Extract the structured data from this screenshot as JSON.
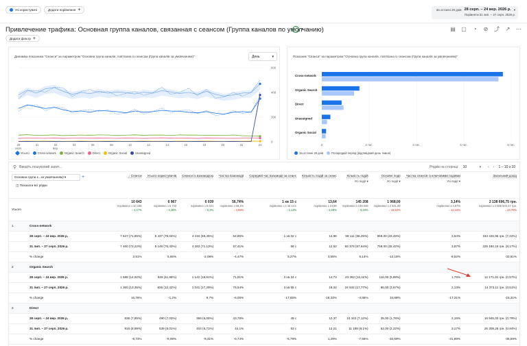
{
  "topbar": {
    "all_users": "Усі користувачі",
    "add_comparison": "Додати порівняння",
    "date_line1_prefix": "За останні 28 днів",
    "date_line1_range": "28 серп. – 24 вер. 2026 р.",
    "date_line2": "Порівняти:31 лип. – 27 серп. 2026 р."
  },
  "page": {
    "title": "Привлечение трафика: Основная группа каналов, связанная с сеансом (Группа каналов по умолчанию)",
    "add_filter": "Додати фільтр"
  },
  "left_chart": {
    "title": "Динаміка показника \"Сеанси\" за параметром \"Основна група каналів, пов'язана із сеансом (Група каналів за умовчанням)\"",
    "period_select": "День",
    "y_ticks": [
      "600",
      "400",
      "200",
      "0"
    ],
    "x_ticks": [
      {
        "d": "29",
        "m": "серп."
      },
      {
        "d": "31",
        "m": ""
      },
      {
        "d": "02",
        "m": "вер."
      },
      {
        "d": "04",
        "m": ""
      },
      {
        "d": "06",
        "m": ""
      },
      {
        "d": "08",
        "m": ""
      },
      {
        "d": "10",
        "m": ""
      },
      {
        "d": "12",
        "m": ""
      },
      {
        "d": "14",
        "m": ""
      },
      {
        "d": "16",
        "m": ""
      },
      {
        "d": "18",
        "m": ""
      },
      {
        "d": "20",
        "m": ""
      },
      {
        "d": "22",
        "m": ""
      },
      {
        "d": "24",
        "m": ""
      }
    ],
    "legend": [
      {
        "name": "Усього",
        "color": "#1a73e8"
      },
      {
        "name": "Cross-network",
        "color": "#1a73e8"
      },
      {
        "name": "Organic Search",
        "color": "#7cb342"
      },
      {
        "name": "Direct",
        "color": "#f06292"
      },
      {
        "name": "Organic Social",
        "color": "#fbbc04"
      },
      {
        "name": "Unassigned",
        "color": "#3949ab"
      }
    ]
  },
  "right_chart": {
    "title": "Показник \"Сеанси\" за параметром \"Основна група каналів, пов'язана із сеансом (Група каналів за умовчанням)\"",
    "x_ticks": [
      "0",
      "2 тис.",
      "4 тис.",
      "6 тис.",
      "8 тис."
    ],
    "legend": [
      {
        "name": "За останні 28 днів",
        "color": "#1a73e8"
      },
      {
        "name": "Попередній період (відповідний день тижня)",
        "color": "#a8c7fa"
      }
    ]
  },
  "chart_data": {
    "type": "bar",
    "title": "",
    "categories": [
      "Cross-network",
      "Organic Search",
      "Direct",
      "Unassigned",
      "Organic Social"
    ],
    "series": [
      {
        "name": "За останні 28 днів",
        "values": [
          7647,
          1588,
          836,
          360,
          180
        ]
      },
      {
        "name": "Попередній період (відповідний день тижня)",
        "values": [
          7460,
          1360,
          916,
          220,
          160
        ]
      }
    ],
    "xlim": [
      0,
      8000
    ],
    "orientation": "horizontal"
  },
  "line_chart_data": {
    "type": "line",
    "x": [
      "29",
      "30",
      "31",
      "01",
      "02",
      "03",
      "04",
      "05",
      "06",
      "07",
      "08",
      "09",
      "10",
      "11",
      "12",
      "13",
      "14",
      "15",
      "16",
      "17",
      "18",
      "19",
      "20",
      "21",
      "22",
      "23",
      "24",
      "25"
    ],
    "series": [
      {
        "name": "Усього",
        "color": "#1a73e8",
        "values": [
          380,
          420,
          395,
          430,
          440,
          410,
          385,
          400,
          390,
          410,
          395,
          405,
          398,
          388,
          402,
          395,
          415,
          405,
          392,
          400,
          385,
          410,
          385,
          370,
          380,
          395,
          400,
          470
        ]
      },
      {
        "name": "Cross-network",
        "color": "#1a73e8",
        "values": [
          270,
          300,
          285,
          270,
          280,
          260,
          245,
          250,
          240,
          255,
          250,
          245,
          235,
          250,
          240,
          245,
          255,
          250,
          248,
          240,
          235,
          245,
          232,
          225,
          240,
          245,
          240,
          350
        ]
      },
      {
        "name": "Organic Search",
        "color": "#7cb342",
        "values": [
          55,
          58,
          52,
          54,
          56,
          50,
          53,
          55,
          52,
          57,
          55,
          52,
          54,
          56,
          53,
          55,
          54,
          52,
          56,
          54,
          55,
          53,
          54,
          52,
          55,
          50,
          48,
          45
        ]
      },
      {
        "name": "Direct",
        "color": "#f06292",
        "values": [
          28,
          32,
          30,
          29,
          31,
          28,
          30,
          32,
          29,
          31,
          30,
          29,
          31,
          30,
          28,
          30,
          32,
          31,
          29,
          30,
          28,
          31,
          30,
          29,
          28,
          30,
          32,
          30
        ]
      },
      {
        "name": "Organic Social",
        "color": "#fbbc04",
        "values": [
          5,
          6,
          5,
          6,
          5,
          4,
          5,
          6,
          5,
          5,
          6,
          5,
          4,
          5,
          6,
          5,
          5,
          4,
          6,
          5,
          5,
          6,
          5,
          4,
          5,
          5,
          6,
          5
        ]
      },
      {
        "name": "Unassigned",
        "color": "#3949ab",
        "values": [
          2,
          3,
          2,
          2,
          3,
          2,
          2,
          3,
          2,
          2,
          3,
          2,
          2,
          2,
          3,
          2,
          2,
          3,
          2,
          2,
          3,
          2,
          2,
          2,
          3,
          2,
          2,
          380
        ]
      }
    ],
    "ylim": [
      0,
      600
    ]
  },
  "table": {
    "search_placeholder": "Введіть пошуковий запит...",
    "rows_per_page_label": "Рядків на сторінці:",
    "rows_per_page": "10",
    "pagination": "1 – 10 з 10",
    "dimension_select": "Основна група к...за умовчанням)",
    "show_all_rows": "Показати всі рядки",
    "columns": [
      {
        "label": "Сеанси",
        "sort": "↓"
      },
      {
        "label": "Усього користувачів"
      },
      {
        "label": "Сеанси із взаємодією"
      },
      {
        "label": "Частка взаємодії"
      },
      {
        "label": "Середній час взаємодії за сеанс"
      },
      {
        "label": "Кількість подій за сеанс"
      },
      {
        "label": "Кількість подій",
        "sub": "Усі події"
      },
      {
        "label": "Основні події",
        "sub": "Усі події"
      },
      {
        "label": "Частка сеансів із ключовими подіями",
        "sub": "Усі події"
      },
      {
        "label": "Загальний дохід"
      }
    ],
    "total_label": "Усього",
    "totals": [
      {
        "v": "10 643",
        "cmp": "порівняно з 10 188",
        "d": "↑ 4,47%",
        "t": "up"
      },
      {
        "v": "6 967",
        "cmp": "порівняно з 6 733",
        "d": "↑ 3,48%",
        "t": "up"
      },
      {
        "v": "6 039",
        "cmp": "порівняно з 6 021",
        "d": "↑ 0,3%",
        "t": "up"
      },
      {
        "v": "56,74%",
        "cmp": "порівняно з 59,1%",
        "d": "↓ 3,99%",
        "t": "down"
      },
      {
        "v": "1 хв 15 с",
        "cmp": "порівняно з 1 хв 14 с",
        "d": "↑ 1,13%",
        "t": "up"
      },
      {
        "v": "13,64",
        "cmp": "порівняно з 13,56",
        "d": "↑ 0,69%",
        "t": "up"
      },
      {
        "v": "145 208",
        "cmp": "порівняно з 138 049",
        "d": "↑ 5,19%",
        "t": "up"
      },
      {
        "v": "1 968,00",
        "cmp": "порівняно з 2 341,00",
        "d": "↓ 15,93%",
        "t": "down"
      },
      {
        "v": "3,14%",
        "cmp": "порівняно з 3,57%",
        "d": "↓ 12,16%",
        "t": "down"
      },
      {
        "v": "2 138 696,75 грн.",
        "cmp": "порівняно з 2 806 503,27 грн.",
        "d": "↓ 23,79%",
        "t": "down"
      }
    ],
    "groups": [
      {
        "idx": "1",
        "name": "Cross-network",
        "rows": [
          {
            "label": "28 серп. – 24 вер. 2026 р.",
            "cells": [
              "7 647 (71,85%)",
              "5 437 (78,04%)",
              "4 194 (69,45%)",
              "54,85%",
              "1 хв 02 с",
              "12,96",
              "99 111 (68,25%)",
              "659,00 (33,49%)",
              "3,54%",
              "154 426,96 грн. (7,22%)"
            ]
          },
          {
            "label": "31 лип. – 27 серп. 2026 р.",
            "cells": [
              "7 460 (73,22%)",
              "5 146 (76,43%)",
              "4 283 (71,13%)",
              "57,41%",
              "58 с",
              "12,52",
              "93 376 (67,64%)",
              "759,00 (32,42%)",
              "3,87%",
              "229 160,15 грн. (8,17%)"
            ]
          },
          {
            "label": "% change",
            "cells": [
              "2,51%",
              "5,65%",
              "-2,08%",
              "-4,47%",
              "5,27%",
              "3,55%",
              "6,14%",
              "-13,18%",
              "-8,52%",
              "-32,61%"
            ]
          }
        ]
      },
      {
        "idx": "2",
        "name": "Organic Search",
        "rows": [
          {
            "label": "28 серп. – 24 вер. 2026 р.",
            "cells": [
              "1 588 (14,92%)",
              "826 (11,86%)",
              "1 142 (18,91%)",
              "71,91%",
              "2 хв 24 с",
              "14,73",
              "23 392 (16,11%)",
              "116,00 (5,89%)",
              "1,76%",
              "12 171,91 грн. (0,57%)"
            ]
          },
          {
            "label": "31 лип. – 27 серп. 2026 р.",
            "cells": [
              "1 360 (13,35%)",
              "836 (12,42%)",
              "1 041 (17,29%)",
              "76,54%",
              "2 хв 55 с",
              "18,04",
              "24 534 (17,77%)",
              "86,00 (3,67%)",
              "2,13%",
              "14 373,11 грн. (0,51%)"
            ]
          },
          {
            "label": "% change",
            "cells": [
              "16,76%",
              "-1,2%",
              "9,7%",
              "-6,05%",
              "-17,65%",
              "-18,34%",
              "-4,65%",
              "34,88%",
              "-17,31%",
              "-15,31%"
            ]
          }
        ]
      },
      {
        "idx": "3",
        "name": "Direct",
        "rows": [
          {
            "label": "28 серп. – 24 вер. 2026 р.",
            "cells": [
              "836 (7,85%)",
              "490 (7,03%)",
              "366 (6,06%)",
              "43,78%",
              "49 с",
              "12,37",
              "10 343 (7,12%)",
              "35,00 (1,78%)",
              "2,15%",
              "16 945,02 грн. (0,79%)"
            ]
          },
          {
            "label": "31 лип. – 27 серп. 2026 р.",
            "cells": [
              "916 (8,99%)",
              "539 (8,01%)",
              "404 (6,71%)",
              "44,1%",
              "53 с",
              "12,21",
              "11 188 (8,1%)",
              "52,00 (2,22%)",
              "3,17%",
              "26 309,26 грн. (0,94%)"
            ]
          },
          {
            "label": "% change",
            "cells": [
              "-8,73%",
              "-9,09%",
              "-9,41%",
              "-0,74%",
              "-6,79%",
              "1,29%",
              "-7,55%",
              "-32,69%",
              "-31,99%",
              "-35,59%"
            ]
          }
        ]
      }
    ]
  }
}
